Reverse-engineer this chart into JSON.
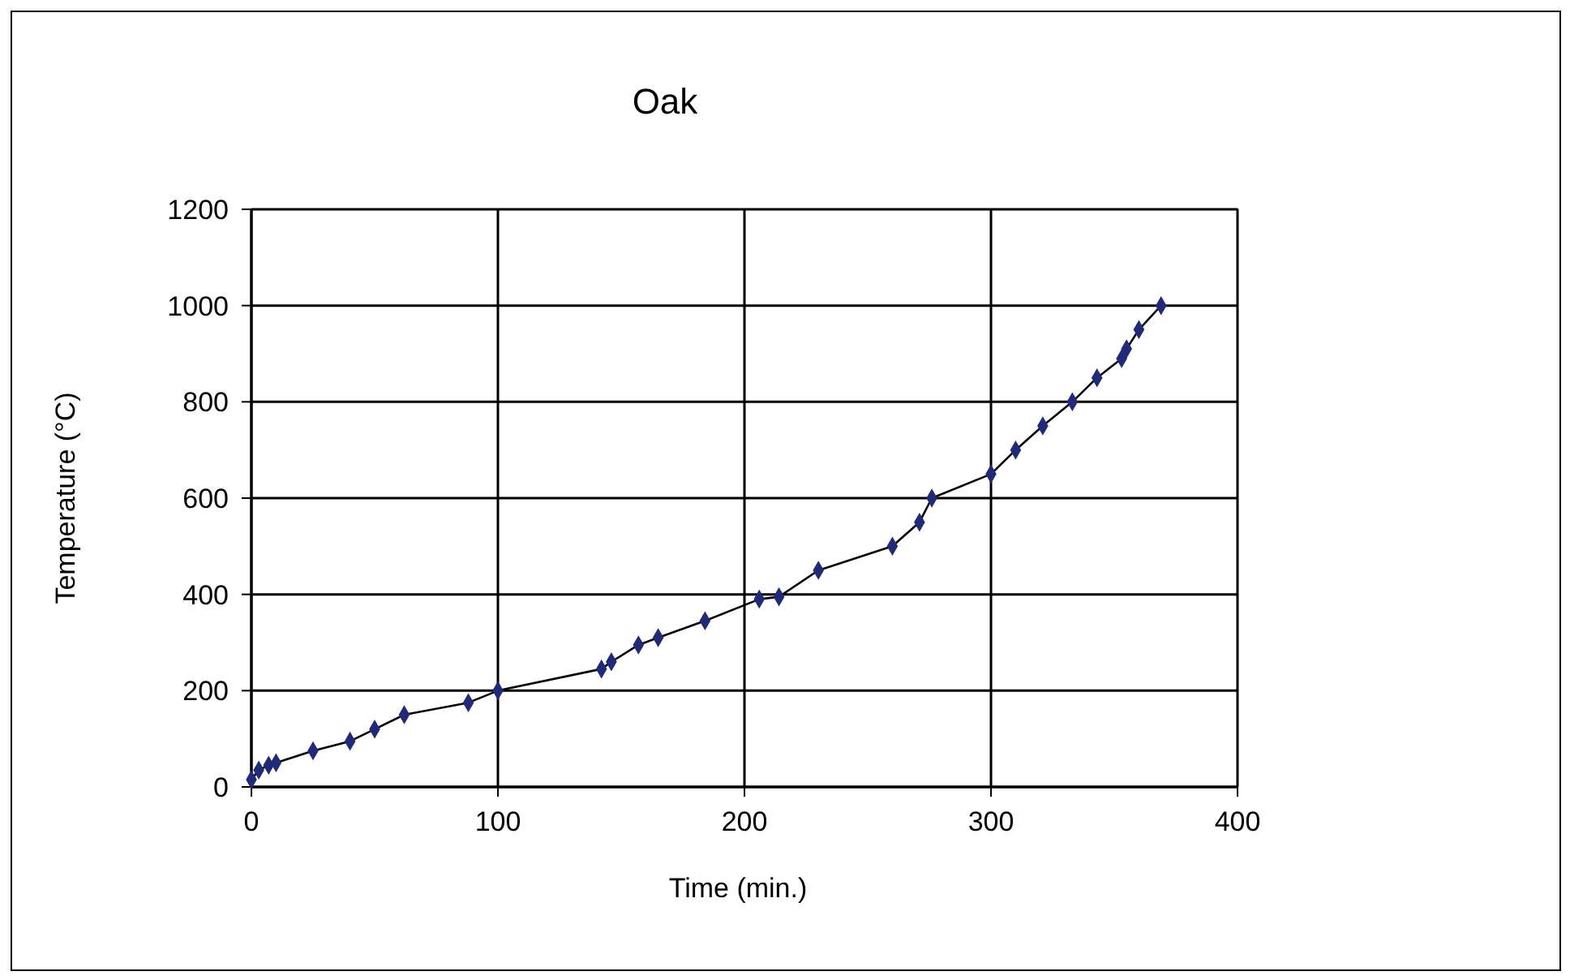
{
  "chart_data": {
    "type": "line",
    "title": "Oak",
    "xlabel": "Time (min.)",
    "ylabel": "Temperature (°C)",
    "x": [
      0,
      3,
      7,
      10,
      25,
      40,
      50,
      62,
      88,
      100,
      142,
      146,
      157,
      165,
      184,
      206,
      214,
      230,
      260,
      271,
      276,
      300,
      310,
      321,
      333,
      343,
      353,
      355,
      360,
      369
    ],
    "series": [
      {
        "color": "#1f2a7a",
        "values": [
          15,
          35,
          45,
          50,
          75,
          95,
          120,
          150,
          175,
          200,
          245,
          260,
          295,
          310,
          345,
          390,
          395,
          450,
          500,
          550,
          600,
          650,
          700,
          750,
          800,
          850,
          890,
          910,
          950,
          1000
        ]
      }
    ],
    "xlim": [
      0,
      400
    ],
    "xticks": [
      0,
      100,
      200,
      300,
      400
    ],
    "ylim": [
      0,
      1200
    ],
    "yticks": [
      0,
      200,
      400,
      600,
      800,
      1000,
      1200
    ],
    "grid": true,
    "marker": "diamond",
    "line_style": "solid"
  }
}
